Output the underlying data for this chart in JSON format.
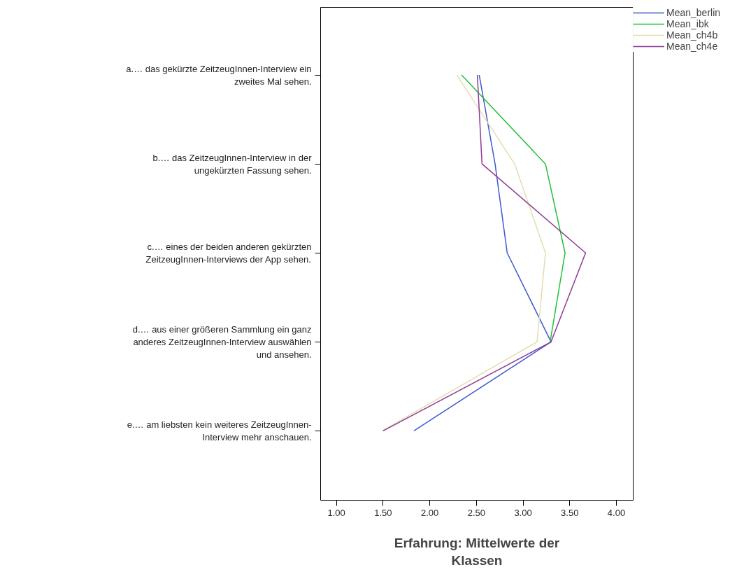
{
  "chart_data": {
    "type": "line",
    "orientation": "horizontal",
    "xlabel": "Erfahrung: Mittelwerte der Klassen",
    "categories": [
      "a.… das gekürzte ZeitzeugInnen-Interview ein zweites Mal sehen.",
      "b.… das ZeitzeugInnen-Interview in der ungekürzten Fassung sehen.",
      "c.… eines der beiden anderen gekürzten ZeitzeugInnen-Interviews der App sehen.",
      "d.… aus einer größeren Sammlung ein ganz anderes ZeitzeugInnen-Interview auswählen und ansehen.",
      "e.… am liebsten kein weiteres ZeitzeugInnen-Interview mehr anschauen."
    ],
    "series": [
      {
        "name": "Mean_berlin",
        "color": "#3e58d0",
        "values": [
          2.53,
          2.7,
          2.83,
          3.3,
          1.83
        ]
      },
      {
        "name": "Mean_ibk",
        "color": "#22c03a",
        "values": [
          2.34,
          3.24,
          3.45,
          3.29,
          null
        ]
      },
      {
        "name": "Mean_ch4b",
        "color": "#e3ddb0",
        "values": [
          2.29,
          2.91,
          3.24,
          3.15,
          1.49
        ]
      },
      {
        "name": "Mean_ch4e",
        "color": "#8e3a93",
        "values": [
          2.51,
          2.56,
          3.67,
          3.3,
          1.5
        ]
      }
    ],
    "xlim": [
      0.83,
      4.18
    ],
    "xticks": [
      {
        "value": 1,
        "label": "1.00"
      },
      {
        "value": 1.5,
        "label": "1.50"
      },
      {
        "value": 2,
        "label": "2.00"
      },
      {
        "value": 2.5,
        "label": "2.50"
      },
      {
        "value": 3,
        "label": "3.00"
      },
      {
        "value": 3.5,
        "label": "3.50"
      },
      {
        "value": 4,
        "label": "4.00"
      }
    ],
    "grid": false,
    "legend": "top right",
    "marker": "none",
    "line_style": "solid"
  }
}
